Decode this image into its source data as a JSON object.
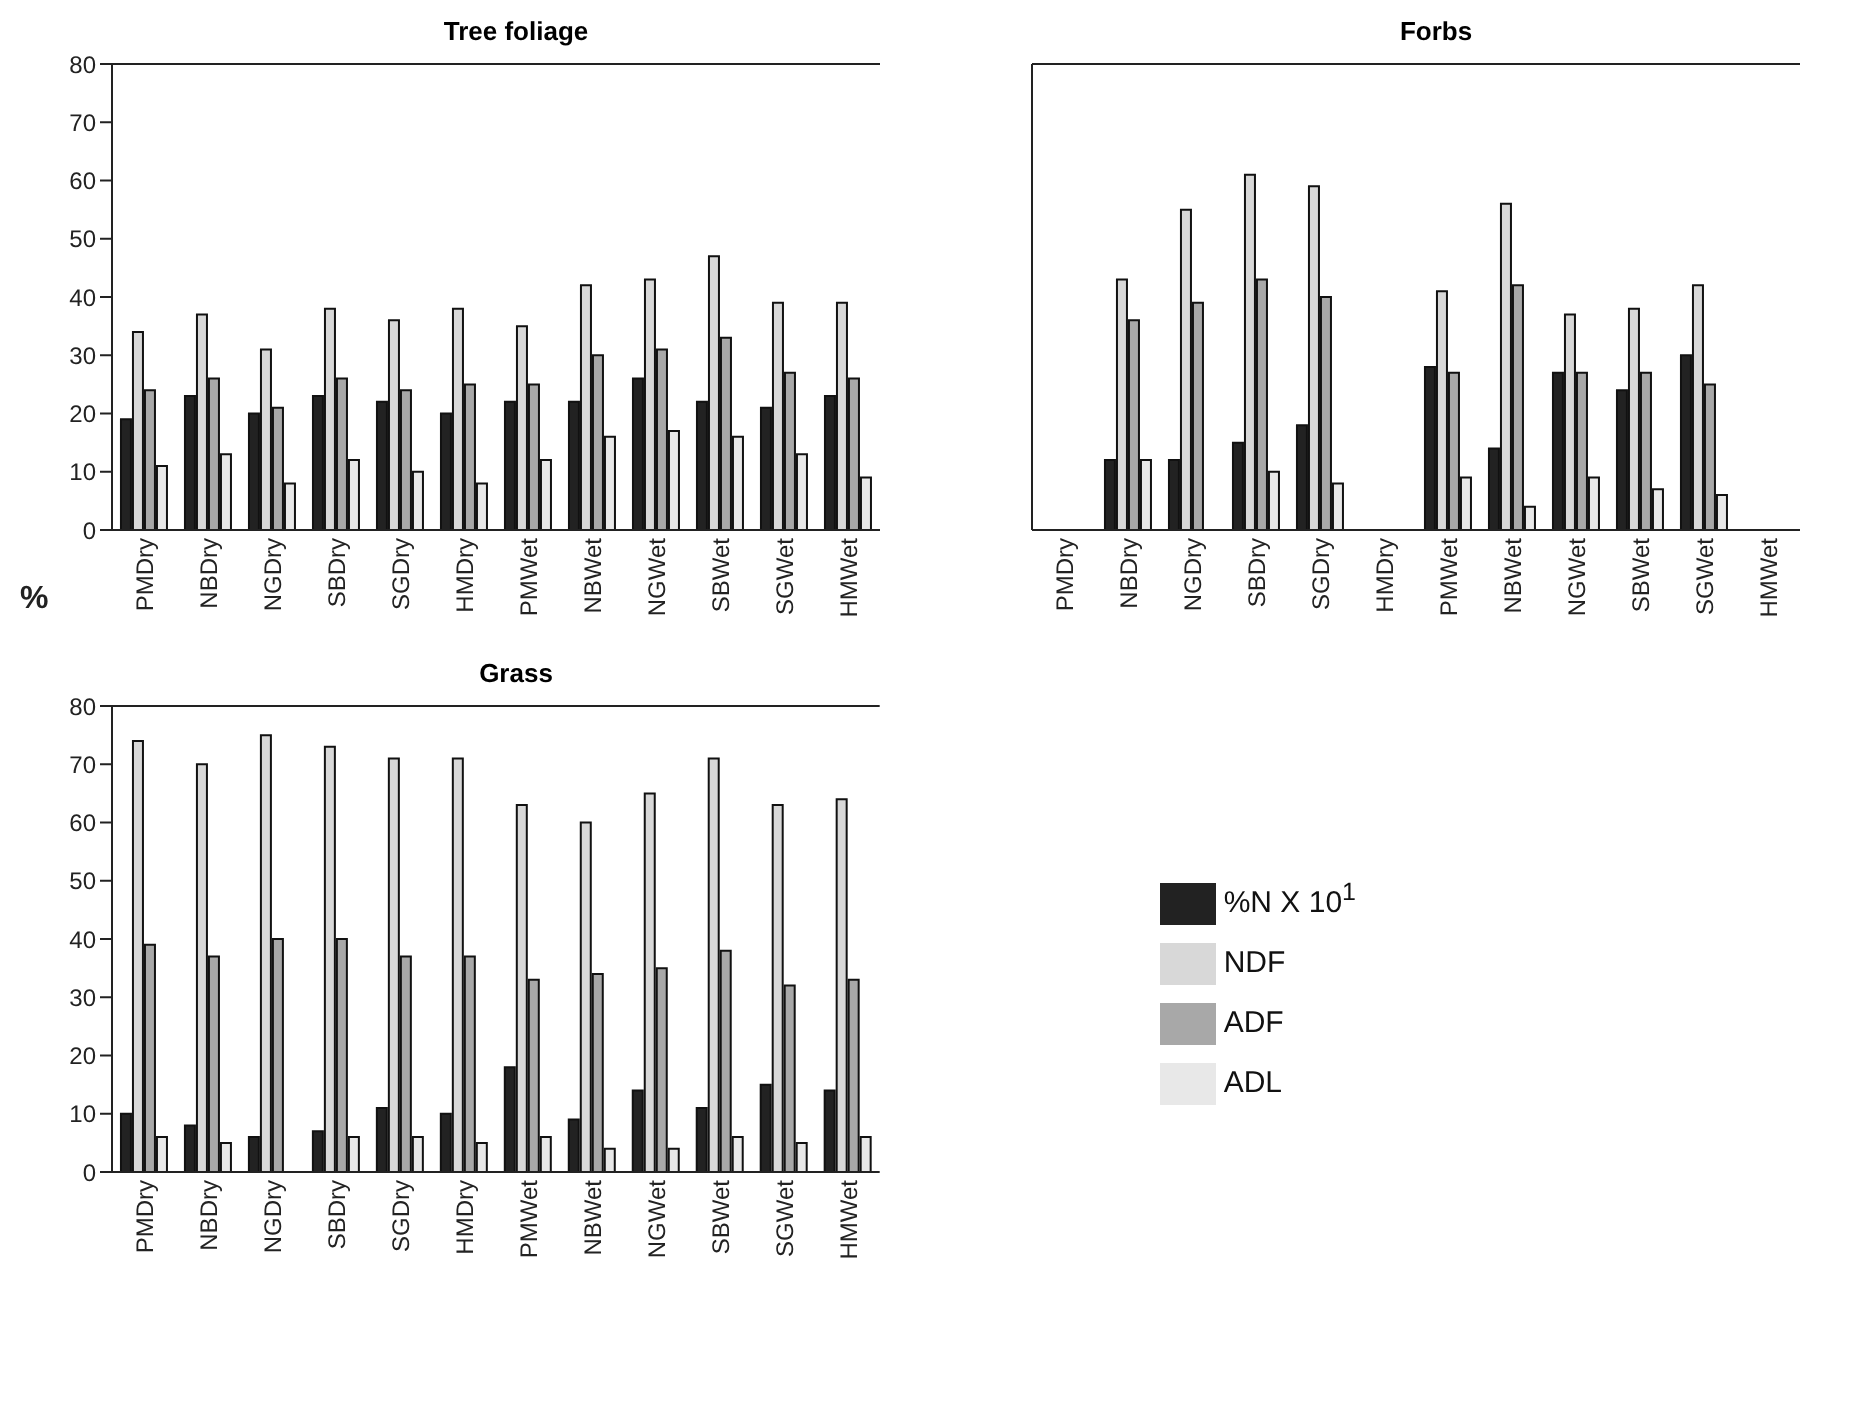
{
  "chart_data": [
    {
      "type": "bar",
      "title": "Tree foliage",
      "ylabel": "%",
      "categories": [
        "PMDry",
        "NBDry",
        "NGDry",
        "SBDry",
        "SGDry",
        "HMDry",
        "PMWet",
        "NBWet",
        "NGWet",
        "SBWet",
        "SGWet",
        "HMWet"
      ],
      "series": [
        {
          "color": "#222222",
          "values": [
            19,
            23,
            20,
            23,
            22,
            20,
            22,
            22,
            26,
            22,
            21,
            23
          ]
        },
        {
          "color": "#d8d8d8",
          "values": [
            34,
            37,
            31,
            38,
            36,
            38,
            35,
            42,
            43,
            47,
            39,
            39
          ]
        },
        {
          "color": "#a8a8a8",
          "values": [
            24,
            26,
            21,
            26,
            24,
            25,
            25,
            30,
            31,
            33,
            27,
            26
          ]
        },
        {
          "color": "#e8e8e8",
          "values": [
            11,
            13,
            8,
            12,
            10,
            8,
            12,
            16,
            17,
            16,
            13,
            9
          ]
        }
      ],
      "ylim": [
        0,
        80
      ],
      "yticks": [
        0,
        10,
        20,
        30,
        40,
        50,
        60,
        70,
        80
      ],
      "grid": false
    },
    {
      "type": "bar",
      "title": "Forbs",
      "categories": [
        "PMDry",
        "NBDry",
        "NGDry",
        "SBDry",
        "SGDry",
        "HMDry",
        "PMWet",
        "NBWet",
        "NGWet",
        "SBWet",
        "SGWet",
        "HMWet"
      ],
      "series": [
        {
          "color": "#222222",
          "values": [
            null,
            12,
            12,
            15,
            18,
            null,
            28,
            14,
            27,
            24,
            30,
            null
          ]
        },
        {
          "color": "#d8d8d8",
          "values": [
            null,
            43,
            55,
            61,
            59,
            null,
            41,
            56,
            37,
            38,
            42,
            null
          ]
        },
        {
          "color": "#a8a8a8",
          "values": [
            null,
            36,
            39,
            43,
            40,
            null,
            27,
            42,
            27,
            27,
            25,
            null
          ]
        },
        {
          "color": "#e8e8e8",
          "values": [
            null,
            12,
            null,
            10,
            8,
            null,
            9,
            4,
            9,
            7,
            6,
            null
          ]
        }
      ],
      "ylim": [
        0,
        80
      ],
      "yticks": [
        0,
        10,
        20,
        30,
        40,
        50,
        60,
        70,
        80
      ],
      "tick_labels": "x",
      "grid": false
    },
    {
      "type": "bar",
      "title": "Grass",
      "categories": [
        "PMDry",
        "NBDry",
        "NGDry",
        "SBDry",
        "SGDry",
        "HMDry",
        "PMWet",
        "NBWet",
        "NGWet",
        "SBWet",
        "SGWet",
        "HMWet"
      ],
      "series": [
        {
          "name": "%N X 10$^{1}$",
          "color": "#222222",
          "values": [
            10,
            8,
            6,
            7,
            11,
            10,
            18,
            9,
            14,
            11,
            15,
            14
          ]
        },
        {
          "name": "NDF",
          "color": "#d8d8d8",
          "values": [
            74,
            70,
            75,
            73,
            71,
            71,
            63,
            60,
            65,
            71,
            63,
            64
          ]
        },
        {
          "name": "ADF",
          "color": "#a8a8a8",
          "values": [
            39,
            37,
            40,
            40,
            37,
            37,
            33,
            34,
            35,
            38,
            32,
            33
          ]
        },
        {
          "name": "ADL",
          "color": "#e8e8e8",
          "values": [
            6,
            5,
            null,
            6,
            6,
            5,
            6,
            4,
            4,
            6,
            5,
            6
          ]
        }
      ],
      "ylim": [
        0,
        80
      ],
      "yticks": [
        0,
        10,
        20,
        30,
        40,
        50,
        60,
        70,
        80
      ],
      "grid": false,
      "legend": "right"
    }
  ]
}
